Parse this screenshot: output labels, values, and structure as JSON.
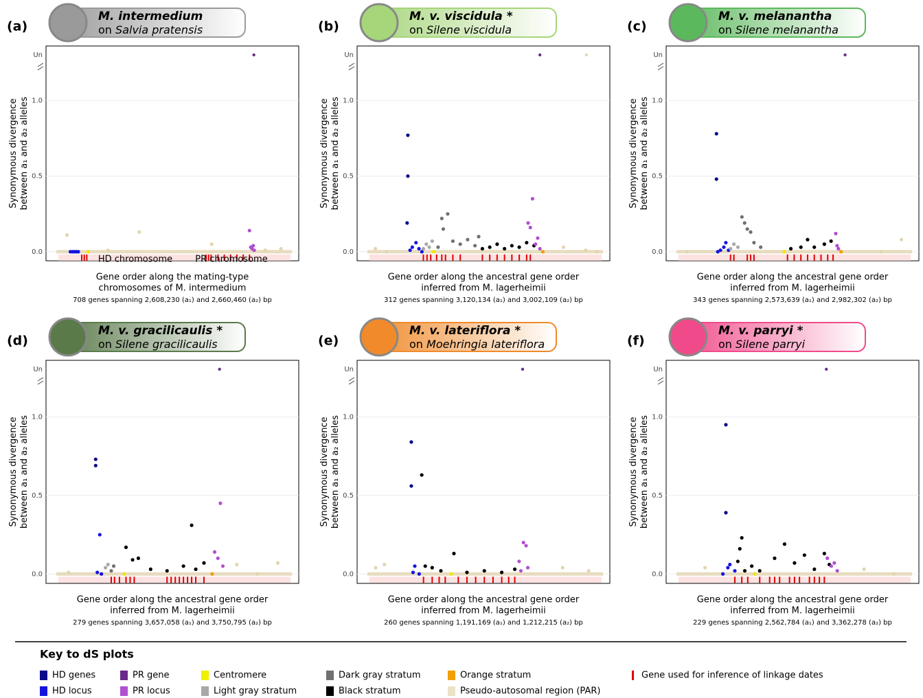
{
  "chart_data": [
    {
      "type": "scatter",
      "panel": "(a)",
      "title": "M. intermedium",
      "host_prefix": "on",
      "host": "Salvia pratensis",
      "header_color": "#9a9a9a",
      "ylabel": [
        "Synonymous divergence",
        "between a₁ and a₂ alleles"
      ],
      "xlabel": [
        "Gene order along the mating-type",
        "chromosomes of M. intermedium"
      ],
      "caption": "708 genes spanning 2,608,230 (a₁) and 2,660,460 (a₂) bp",
      "annotations": [
        "HD chromosome",
        "PR chromosome"
      ],
      "un_label": "Un",
      "xlim": [
        -40,
        750
      ],
      "ylim": [
        -0.06,
        1.36
      ],
      "yticks": [
        {
          "value": 0,
          "label": "0.0"
        },
        0.5,
        {
          "value": 1,
          "label": "1.0"
        }
      ],
      "series": [
        {
          "color": "#1414e0",
          "x": [
            31,
            38,
            44,
            50,
            56
          ],
          "values": [
            0,
            0,
            0,
            0,
            0
          ]
        },
        {
          "color": "#f0e800",
          "x": [
            87
          ],
          "values": [
            0
          ]
        },
        {
          "color": "#b050d0",
          "x": [
            600,
            604,
            608,
            612,
            615
          ],
          "values": [
            0.14,
            0.03,
            0.02,
            0.04,
            0.01
          ]
        },
        {
          "color": "#6a2b8a",
          "x": [],
          "values": [],
          "un_x": [
            614
          ]
        },
        {
          "color": "#e2d6b0",
          "x": [
            20,
            150,
            250,
            480,
            650,
            700
          ],
          "values": [
            0.11,
            0.01,
            0.13,
            0.05,
            0.01,
            0.02
          ]
        }
      ],
      "linkage_genes": [
        67,
        75,
        83,
        462,
        470,
        478,
        500,
        520,
        540,
        560,
        580,
        600
      ]
    },
    {
      "type": "scatter",
      "panel": "(b)",
      "title": "M. v. viscidula *",
      "host_prefix": "on",
      "host": "Silene viscidula",
      "header_color": "#a6d57a",
      "ylabel": [
        "Synonymous divergence",
        "between a₁ and a₂ alleles"
      ],
      "xlabel": [
        "Gene order along the ancestral gene order",
        "inferred from M. lagerheimii"
      ],
      "caption": "312 genes spanning 3,120,134 (a₁) and 3,002,109 (a₂) bp",
      "un_label": "Un",
      "xlim": [
        -17,
        320
      ],
      "ylim": [
        -0.06,
        1.36
      ],
      "yticks": [
        {
          "value": 0,
          "label": "0.0"
        },
        0.5,
        {
          "value": 1,
          "label": "1.0"
        }
      ],
      "series": [
        {
          "color": "#0a0a8a",
          "x": [
            49,
            49,
            48
          ],
          "values": [
            0.77,
            0.5,
            0.19
          ]
        },
        {
          "color": "#1414e0",
          "x": [
            52,
            55,
            60,
            64,
            68
          ],
          "values": [
            0.01,
            0.03,
            0.06,
            0.02,
            0
          ]
        },
        {
          "color": "#a8a8a8",
          "x": [
            70,
            74,
            78,
            82
          ],
          "values": [
            0.02,
            0.05,
            0.03,
            0.07
          ]
        },
        {
          "color": "#f0e800",
          "x": [
            84
          ],
          "values": [
            0
          ]
        },
        {
          "color": "#707070",
          "x": [
            90,
            95,
            97,
            103,
            110,
            120,
            130,
            140,
            145
          ],
          "values": [
            0.03,
            0.22,
            0.15,
            0.25,
            0.07,
            0.05,
            0.08,
            0.04,
            0.1
          ]
        },
        {
          "color": "#000000",
          "x": [
            150,
            160,
            170,
            180,
            190,
            200,
            210,
            220
          ],
          "values": [
            0.02,
            0.03,
            0.05,
            0.02,
            0.04,
            0.03,
            0.06,
            0.04
          ]
        },
        {
          "color": "#b050d0",
          "x": [
            212,
            215,
            218,
            222,
            225,
            228
          ],
          "values": [
            0.19,
            0.16,
            0.35,
            0.05,
            0.09,
            0.02
          ]
        },
        {
          "color": "#f0a000",
          "x": [
            232
          ],
          "values": [
            0
          ]
        },
        {
          "color": "#6a2b8a",
          "x": [],
          "values": [],
          "un_x": [
            228
          ]
        },
        {
          "color": "#e2d6b0",
          "x": [
            5,
            20,
            260,
            290,
            305
          ],
          "values": [
            0.02,
            0,
            0.03,
            0.01,
            0
          ],
          "un_x": [
            291
          ]
        }
      ],
      "linkage_genes": [
        70,
        75,
        80,
        88,
        95,
        100,
        110,
        120,
        150,
        160,
        170,
        180,
        190,
        200,
        210,
        215
      ]
    },
    {
      "type": "scatter",
      "panel": "(c)",
      "title": "M. v. melanantha",
      "host_prefix": "on",
      "host": "Silene melanantha",
      "header_color": "#5cb85c",
      "ylabel": [
        "Synonymous divergence",
        "between a₁ and a₂ alleles"
      ],
      "xlabel": [
        "Gene order along the ancestral gene order",
        "inferred from M. lagerheimii"
      ],
      "caption": "343 genes spanning 2,573,639 (a₁) and 2,982,302 (a₂) bp",
      "un_label": "Un",
      "xlim": [
        -18,
        353
      ],
      "ylim": [
        -0.06,
        1.36
      ],
      "yticks": [
        {
          "value": 0,
          "label": "0.0"
        },
        0.5,
        {
          "value": 1,
          "label": "1.0"
        }
      ],
      "series": [
        {
          "color": "#0a0a8a",
          "x": [
            54,
            54
          ],
          "values": [
            0.78,
            0.48
          ]
        },
        {
          "color": "#1414e0",
          "x": [
            56,
            60,
            65,
            68,
            72
          ],
          "values": [
            0,
            0.01,
            0.03,
            0.06,
            0.01
          ]
        },
        {
          "color": "#a8a8a8",
          "x": [
            75,
            80,
            86
          ],
          "values": [
            0.02,
            0.05,
            0.03
          ]
        },
        {
          "color": "#f0e800",
          "x": [
            155
          ],
          "values": [
            0
          ]
        },
        {
          "color": "#707070",
          "x": [
            92,
            96,
            100,
            105,
            110,
            120
          ],
          "values": [
            0.23,
            0.19,
            0.15,
            0.13,
            0.06,
            0.03
          ]
        },
        {
          "color": "#000000",
          "x": [
            165,
            180,
            190,
            200,
            215,
            225
          ],
          "values": [
            0.02,
            0.03,
            0.08,
            0.03,
            0.05,
            0.07
          ]
        },
        {
          "color": "#b050d0",
          "x": [
            232,
            234,
            236
          ],
          "values": [
            0.12,
            0.04,
            0.02
          ]
        },
        {
          "color": "#f0a000",
          "x": [
            240
          ],
          "values": [
            0
          ]
        },
        {
          "color": "#6a2b8a",
          "x": [],
          "values": [],
          "un_x": [
            246
          ]
        },
        {
          "color": "#e2d6b0",
          "x": [
            10,
            300,
            330
          ],
          "values": [
            0,
            0,
            0.08
          ]
        }
      ],
      "linkage_genes": [
        75,
        80,
        100,
        105,
        110,
        160,
        170,
        180,
        190,
        200,
        210,
        220,
        228
      ]
    },
    {
      "type": "scatter",
      "panel": "(d)",
      "title": "M. v. gracilicaulis *",
      "host_prefix": "on",
      "host": "Silene gracilicaulis",
      "header_color": "#5a7a4a",
      "ylabel": [
        "Synonymous divergence",
        "between a₁ and a₂ alleles"
      ],
      "xlabel": [
        "Gene order along the ancestral gene order",
        "inferred from M. lagerheimii"
      ],
      "caption": "279 genes spanning 3,657,058 (a₁) and 3,750,795 (a₂) bp",
      "un_label": "Un",
      "xlim": [
        -15,
        288
      ],
      "ylim": [
        -0.06,
        1.36
      ],
      "yticks": [
        {
          "value": 0,
          "label": "0.0"
        },
        0.5,
        {
          "value": 1,
          "label": "1.0"
        }
      ],
      "series": [
        {
          "color": "#0a0a8a",
          "x": [
            43,
            43
          ],
          "values": [
            0.73,
            0.69
          ]
        },
        {
          "color": "#1414e0",
          "x": [
            45,
            48,
            50
          ],
          "values": [
            0.01,
            0.25,
            0
          ]
        },
        {
          "color": "#a8a8a8",
          "x": [
            55,
            58
          ],
          "values": [
            0.04,
            0.06
          ]
        },
        {
          "color": "#707070",
          "x": [
            62,
            65
          ],
          "values": [
            0.02,
            0.05
          ]
        },
        {
          "color": "#f0e800",
          "x": [
            78
          ],
          "values": [
            0
          ]
        },
        {
          "color": "#000000",
          "x": [
            80,
            88,
            95,
            110,
            130,
            150,
            160,
            165,
            175
          ],
          "values": [
            0.17,
            0.09,
            0.1,
            0.03,
            0.02,
            0.05,
            0.31,
            0.03,
            0.07
          ]
        },
        {
          "color": "#b050d0",
          "x": [
            188,
            192,
            195,
            198
          ],
          "values": [
            0.14,
            0.1,
            0.45,
            0.05
          ]
        },
        {
          "color": "#f0a000",
          "x": [
            185
          ],
          "values": [
            0
          ]
        },
        {
          "color": "#6a2b8a",
          "x": [],
          "values": [],
          "un_x": [
            194
          ]
        },
        {
          "color": "#e2d6b0",
          "x": [
            10,
            215,
            240,
            265
          ],
          "values": [
            0.01,
            0.06,
            0,
            0.07
          ]
        }
      ],
      "linkage_genes": [
        62,
        66,
        72,
        80,
        85,
        90,
        130,
        135,
        140,
        145,
        150,
        155,
        160,
        165,
        175
      ]
    },
    {
      "type": "scatter",
      "panel": "(e)",
      "title": "M. v. lateriflora *",
      "host_prefix": "on",
      "host": "Moehringia lateriflora",
      "header_color": "#f08a2a",
      "ylabel": [
        "Synonymous divergence",
        "between a₁ and a₂ alleles"
      ],
      "xlabel": [
        "Gene order along the ancestral gene order",
        "inferred from M. lagerheimii"
      ],
      "caption": "260 genes spanning 1,191,169 (a₁) and 1,212,215 (a₂) bp",
      "un_label": "Un",
      "xlim": [
        -14,
        272
      ],
      "ylim": [
        -0.06,
        1.36
      ],
      "yticks": [
        {
          "value": 0,
          "label": "0.0"
        },
        0.5,
        {
          "value": 1,
          "label": "1.0"
        }
      ],
      "series": [
        {
          "color": "#0a0a8a",
          "x": [
            46,
            46
          ],
          "values": [
            0.84,
            0.56
          ]
        },
        {
          "color": "#1414e0",
          "x": [
            48,
            50,
            55
          ],
          "values": [
            0.01,
            0.05,
            0
          ]
        },
        {
          "color": "#f0e800",
          "x": [
            92
          ],
          "values": [
            0
          ]
        },
        {
          "color": "#000000",
          "x": [
            58,
            62,
            70,
            80,
            95,
            110,
            130,
            150,
            165
          ],
          "values": [
            0.63,
            0.05,
            0.04,
            0.02,
            0.13,
            0.01,
            0.02,
            0.01,
            0.03
          ]
        },
        {
          "color": "#b050d0",
          "x": [
            170,
            172,
            175,
            178,
            180
          ],
          "values": [
            0.08,
            0.02,
            0.2,
            0.18,
            0.04
          ]
        },
        {
          "color": "#6a2b8a",
          "x": [],
          "values": [],
          "un_x": [
            174
          ]
        },
        {
          "color": "#e2d6b0",
          "x": [
            5,
            15,
            220,
            250
          ],
          "values": [
            0.04,
            0.06,
            0.04,
            0.02
          ]
        }
      ],
      "linkage_genes": [
        60,
        70,
        78,
        85,
        100,
        110,
        120,
        130,
        140,
        150,
        158,
        165
      ]
    },
    {
      "type": "scatter",
      "panel": "(f)",
      "title": "M. v. parryi *",
      "host_prefix": "on",
      "host": "Silene parryi",
      "header_color": "#f04a8a",
      "ylabel": [
        "Synonymous divergence",
        "between a₁ and a₂ alleles"
      ],
      "xlabel": [
        "Gene order along the ancestral gene order",
        "inferred from M. lagerheimii"
      ],
      "caption": "229 genes spanning 2,562,784 (a₁) and 3,362,278 (a₂) bp",
      "un_label": "Un",
      "xlim": [
        -12,
        238
      ],
      "ylim": [
        -0.06,
        1.36
      ],
      "yticks": [
        {
          "value": 0,
          "label": "0.0"
        },
        0.5,
        {
          "value": 1,
          "label": "1.0"
        }
      ],
      "series": [
        {
          "color": "#0a0a8a",
          "x": [
            46,
            46
          ],
          "values": [
            0.95,
            0.39
          ]
        },
        {
          "color": "#1414e0",
          "x": [
            43,
            48,
            50,
            55
          ],
          "values": [
            0,
            0.04,
            0.06,
            0.02
          ]
        },
        {
          "color": "#f0e800",
          "x": [
            75
          ],
          "values": [
            0
          ]
        },
        {
          "color": "#000000",
          "x": [
            58,
            60,
            62,
            65,
            72,
            80,
            95,
            105,
            115,
            125,
            135,
            145,
            150
          ],
          "values": [
            0.08,
            0.16,
            0.23,
            0.02,
            0.05,
            0.02,
            0.1,
            0.19,
            0.07,
            0.12,
            0.03,
            0.13,
            0.06
          ]
        },
        {
          "color": "#b050d0",
          "x": [
            148,
            152,
            155,
            158
          ],
          "values": [
            0.1,
            0.05,
            0.07,
            0.02
          ]
        },
        {
          "color": "#6a2b8a",
          "x": [],
          "values": [],
          "un_x": [
            147
          ]
        },
        {
          "color": "#e2d6b0",
          "x": [
            25,
            185,
            215
          ],
          "values": [
            0.04,
            0.03,
            0
          ]
        }
      ],
      "linkage_genes": [
        55,
        62,
        68,
        80,
        90,
        95,
        100,
        110,
        115,
        120,
        130,
        135,
        140,
        145
      ]
    }
  ],
  "key": {
    "title": "Key to dS plots",
    "items": [
      {
        "label": "HD genes",
        "color": "#0a0a8a"
      },
      {
        "label": "HD locus",
        "color": "#1414e0"
      },
      {
        "label": "PR gene",
        "color": "#6a2b8a"
      },
      {
        "label": "PR locus",
        "color": "#b050d0"
      },
      {
        "label": "Centromere",
        "color": "#f0f000"
      },
      {
        "label": "Light gray stratum",
        "color": "#a8a8a8"
      },
      {
        "label": "Dark gray stratum",
        "color": "#707070"
      },
      {
        "label": "Black stratum",
        "color": "#000000"
      },
      {
        "label": "Orange stratum",
        "color": "#f0a000"
      },
      {
        "label": "Pseudo-autosomal region (PAR)",
        "color": "#ece2c8"
      },
      {
        "label": "Gene used for inference of linkage dates",
        "color": "#e00000"
      }
    ]
  }
}
